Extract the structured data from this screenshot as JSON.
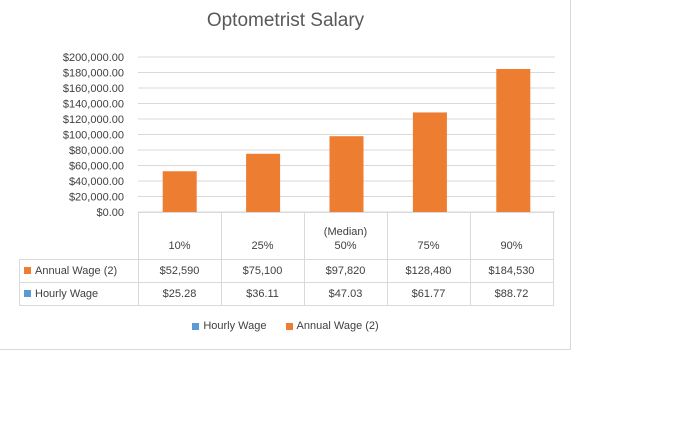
{
  "chart_data": {
    "type": "bar",
    "title": "Optometrist Salary",
    "categories": [
      "10%",
      "25%",
      "50%",
      "75%",
      "90%"
    ],
    "category_notes": [
      "",
      "",
      "(Median)",
      "",
      ""
    ],
    "ylim": [
      0,
      200000
    ],
    "yticks": [
      "$0.00",
      "$20,000.00",
      "$40,000.00",
      "$60,000.00",
      "$80,000.00",
      "$100,000.00",
      "$120,000.00",
      "$140,000.00",
      "$160,000.00",
      "$180,000.00",
      "$200,000.00"
    ],
    "grid": true,
    "legend_position": "bottom",
    "series": [
      {
        "name": "Annual Wage (2)",
        "values": [
          52590,
          75100,
          97820,
          128480,
          184530
        ],
        "labels": [
          "$52,590",
          "$75,100",
          "$97,820",
          "$128,480",
          "$184,530"
        ],
        "color": "#ed7d31"
      },
      {
        "name": "Hourly Wage",
        "values": [
          25.28,
          36.11,
          47.03,
          61.77,
          88.72
        ],
        "labels": [
          "$25.28",
          "$36.11",
          "$47.03",
          "$61.77",
          "$88.72"
        ],
        "color": "#5b9bd5"
      }
    ]
  }
}
